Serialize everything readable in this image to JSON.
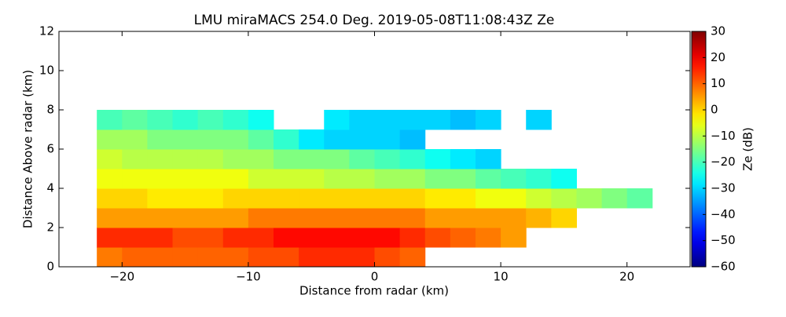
{
  "chart_data": {
    "type": "heatmap",
    "title": "LMU miraMACS 254.0 Deg. 2019-05-08T11:08:43Z  Ze",
    "x_label": "Distance from radar (km)",
    "y_label": "Distance Above radar  (km)",
    "colorbar_label": "Ze (dB)",
    "colormap": "jet",
    "x_bins": [
      -22,
      -20,
      -18,
      -16,
      -14,
      -12,
      -10,
      -8,
      -6,
      -4,
      -2,
      0,
      2,
      4,
      6,
      8,
      10,
      12,
      14,
      16,
      18,
      20,
      22
    ],
    "y_bins": [
      0,
      1,
      2,
      3,
      4,
      5,
      6,
      7,
      8
    ],
    "values": [
      [
        8,
        10,
        10,
        10,
        10,
        10,
        12,
        12,
        15,
        15,
        15,
        12,
        10,
        null,
        null,
        null,
        null,
        null,
        null,
        null,
        null,
        null
      ],
      [
        15,
        15,
        15,
        12,
        12,
        15,
        15,
        18,
        18,
        18,
        18,
        18,
        15,
        12,
        10,
        8,
        5,
        null,
        null,
        null,
        null,
        null
      ],
      [
        5,
        5,
        5,
        5,
        5,
        5,
        8,
        8,
        8,
        8,
        8,
        8,
        8,
        5,
        5,
        5,
        5,
        3,
        0,
        null,
        null,
        null
      ],
      [
        0,
        0,
        -2,
        -2,
        -2,
        0,
        0,
        0,
        0,
        0,
        0,
        0,
        0,
        -2,
        -2,
        -5,
        -5,
        -8,
        -10,
        -12,
        -15,
        -18
      ],
      [
        -5,
        -5,
        -5,
        -5,
        -5,
        -5,
        -8,
        -8,
        -8,
        -10,
        -10,
        -12,
        -12,
        -15,
        -15,
        -18,
        -20,
        -22,
        -25,
        null,
        null,
        null
      ],
      [
        -8,
        -10,
        -10,
        -10,
        -10,
        -12,
        -12,
        -15,
        -15,
        -15,
        -18,
        -20,
        -22,
        -25,
        -28,
        -30,
        null,
        null,
        null,
        null,
        null,
        null
      ],
      [
        -12,
        -12,
        -15,
        -15,
        -15,
        -15,
        -18,
        -22,
        -28,
        -30,
        -30,
        -30,
        -32,
        null,
        null,
        null,
        null,
        null,
        null,
        null,
        null,
        null
      ],
      [
        -20,
        -18,
        -20,
        -22,
        -20,
        -22,
        -25,
        null,
        null,
        -28,
        -30,
        -30,
        -30,
        -30,
        -32,
        -30,
        null,
        -30,
        null,
        null,
        null,
        null
      ]
    ],
    "xlim": [
      -25,
      25
    ],
    "xticks": [
      {
        "value": -20,
        "label": "−20"
      },
      {
        "value": -10,
        "label": "−10"
      },
      0,
      10,
      20
    ],
    "ylim": [
      0,
      12
    ],
    "yticks": [
      0,
      2,
      4,
      6,
      8,
      10,
      12
    ],
    "zlim": [
      -60,
      30
    ],
    "zticks": [
      {
        "value": -60,
        "label": "−60"
      },
      {
        "value": -50,
        "label": "−50"
      },
      {
        "value": -40,
        "label": "−40"
      },
      {
        "value": -30,
        "label": "−30"
      },
      {
        "value": -20,
        "label": "−20"
      },
      {
        "value": -10,
        "label": "−10"
      },
      0,
      10,
      20,
      30
    ]
  }
}
